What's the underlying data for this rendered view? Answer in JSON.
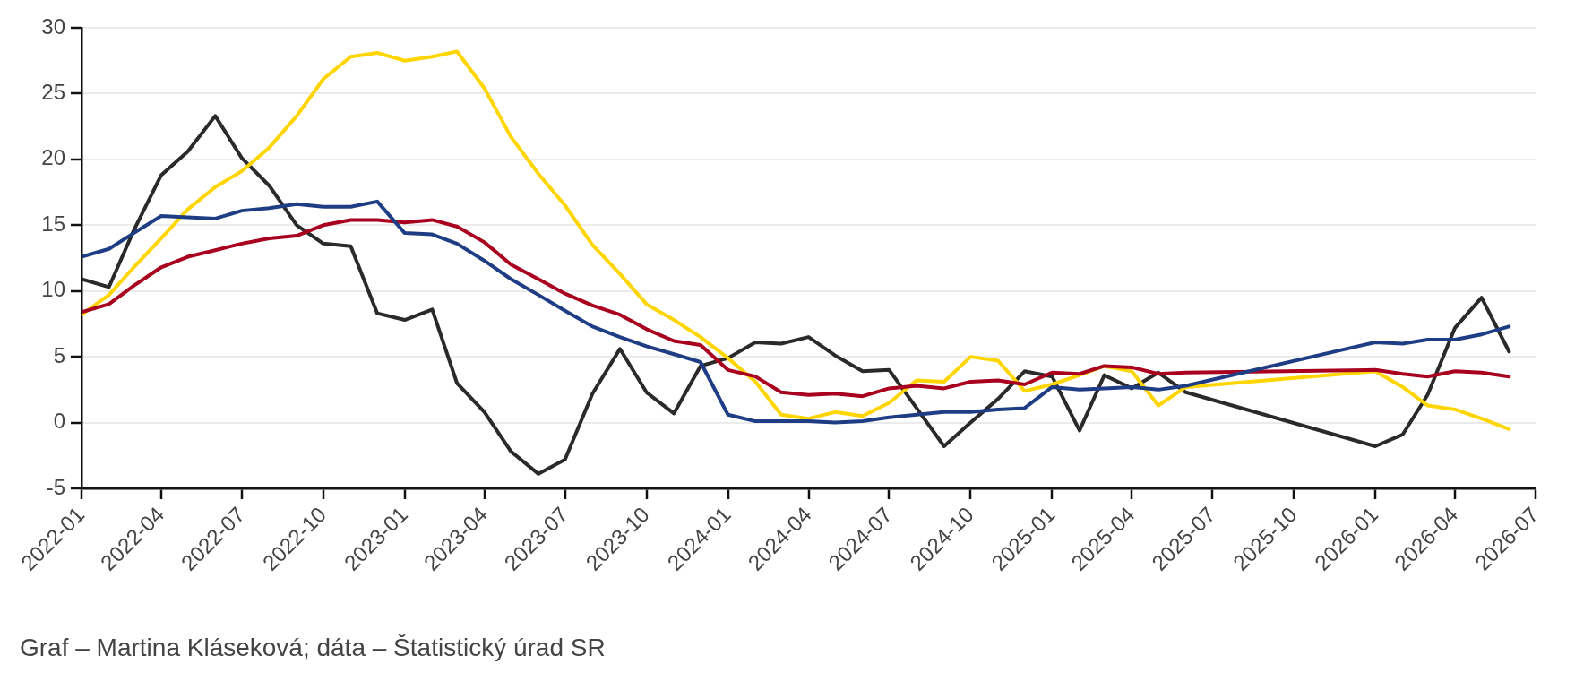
{
  "chart_data": {
    "type": "line",
    "x": [
      "2022-01",
      "2022-02",
      "2022-03",
      "2022-04",
      "2022-05",
      "2022-06",
      "2022-07",
      "2022-08",
      "2022-09",
      "2022-10",
      "2022-11",
      "2022-12",
      "2023-01",
      "2023-02",
      "2023-03",
      "2023-04",
      "2023-05",
      "2023-06",
      "2023-07",
      "2023-08",
      "2023-09",
      "2023-10",
      "2023-11",
      "2023-12",
      "2024-01",
      "2024-02",
      "2024-03",
      "2024-04",
      "2024-05",
      "2024-06",
      "2024-07",
      "2024-08",
      "2024-09",
      "2024-10",
      "2024-11",
      "2024-12",
      "2025-01",
      "2025-02",
      "2025-03",
      "2025-04",
      "2025-05",
      "2025-06",
      "2026-01",
      "2026-02",
      "2026-03",
      "2026-04",
      "2026-05",
      "2026-06"
    ],
    "series": [
      {
        "color": "#1f3d84",
        "values": [
          12.6,
          13.2,
          14.4,
          15.7,
          15.6,
          15.5,
          16.1,
          16.3,
          16.6,
          16.4,
          16.4,
          16.8,
          14.4,
          14.3,
          13.6,
          12.3,
          10.9,
          9.7,
          8.5,
          7.3,
          6.5,
          5.8,
          5.2,
          4.6,
          0.6,
          0.1,
          0.1,
          0.1,
          0.0,
          0.1,
          0.4,
          0.6,
          0.8,
          0.8,
          1.0,
          1.1,
          2.7,
          2.5,
          2.6,
          2.7,
          2.5,
          2.8,
          6.1,
          6.0,
          6.3,
          6.3,
          6.7,
          7.3
        ]
      },
      {
        "color": "#a8001e",
        "values": [
          8.4,
          9.0,
          10.4,
          11.8,
          12.6,
          13.1,
          13.6,
          14.0,
          14.2,
          15.0,
          15.4,
          15.4,
          15.2,
          15.4,
          14.9,
          13.7,
          12.0,
          10.9,
          9.8,
          8.9,
          8.2,
          7.1,
          6.2,
          5.9,
          4.0,
          3.5,
          2.3,
          2.1,
          2.2,
          2.0,
          2.6,
          2.8,
          2.6,
          3.1,
          3.2,
          2.9,
          3.8,
          3.7,
          4.3,
          4.2,
          3.7,
          3.8,
          4.0,
          3.7,
          3.5,
          3.9,
          3.8,
          3.5
        ]
      },
      {
        "color": "#ffd500",
        "values": [
          8.2,
          9.7,
          11.8,
          14.0,
          16.2,
          17.9,
          19.1,
          20.9,
          23.3,
          26.1,
          27.8,
          28.1,
          27.5,
          27.8,
          28.2,
          25.4,
          21.7,
          18.9,
          16.5,
          13.5,
          11.3,
          9.0,
          7.8,
          6.5,
          4.9,
          3.1,
          0.6,
          0.3,
          0.8,
          0.5,
          1.5,
          3.2,
          3.1,
          5.0,
          4.7,
          2.4,
          2.9,
          3.6,
          4.3,
          3.9,
          1.3,
          2.7,
          3.9,
          2.7,
          1.3,
          1.0,
          0.3,
          -0.5
        ]
      },
      {
        "color": "#2a2a2a",
        "values": [
          10.9,
          10.3,
          14.6,
          18.8,
          20.6,
          23.3,
          20.1,
          18.0,
          15.0,
          13.6,
          13.4,
          8.3,
          7.8,
          8.6,
          3.0,
          0.8,
          -2.2,
          -3.9,
          -2.8,
          2.2,
          5.6,
          2.3,
          0.7,
          4.3,
          4.9,
          6.1,
          6.0,
          6.5,
          5.1,
          3.9,
          4.0,
          1.1,
          -1.8,
          0.0,
          1.8,
          3.9,
          3.5,
          -0.6,
          3.6,
          2.6,
          3.8,
          2.3,
          -1.8,
          -0.9,
          2.1,
          7.2,
          9.5,
          5.4
        ]
      }
    ],
    "xlim": [
      "2022-01",
      "2026-07"
    ],
    "xticks": [
      "2022-01",
      "2022-04",
      "2022-07",
      "2022-10",
      "2023-01",
      "2023-04",
      "2023-07",
      "2023-10",
      "2024-01",
      "2024-04",
      "2024-07",
      "2024-10",
      "2025-01",
      "2025-04",
      "2025-07",
      "2025-10",
      "2026-01",
      "2026-04",
      "2026-07"
    ],
    "ylim": [
      -5,
      30
    ],
    "yticks": [
      -5,
      0,
      5,
      10,
      15,
      20,
      25,
      30
    ],
    "grid": "y",
    "legend": false,
    "marker": "none",
    "line_style": "solid",
    "annotations": [
      "Graf – Martina Kláseková; dáta – Štatistický úrad SR"
    ]
  }
}
